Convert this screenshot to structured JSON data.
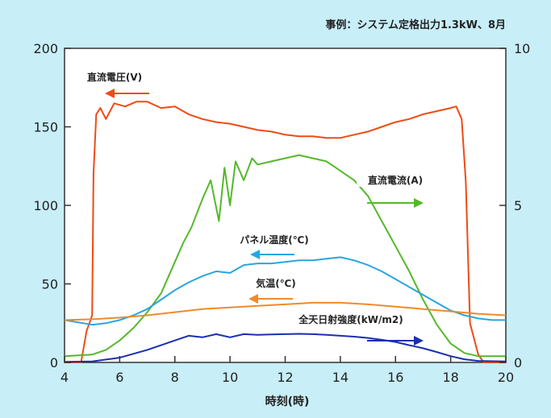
{
  "colors": {
    "background": "#c8eef8",
    "plot_background": "#ffffff",
    "voltage": "#ef4b14",
    "current": "#55b82a",
    "panel_temp": "#2aa4e2",
    "air_temp": "#f08a2a",
    "irradiance": "#1a2fb0",
    "axis": "#333333"
  },
  "chart_data": {
    "type": "line",
    "title": "",
    "annotation": "事例：システム定格出力1.3kW、8月",
    "xlabel": "時刻(時)",
    "ylabel": "",
    "xlim": [
      4,
      20
    ],
    "ylim_left": [
      0,
      200
    ],
    "ylim_right": [
      0,
      10
    ],
    "x_ticks": [
      "4",
      "6",
      "8",
      "10",
      "12",
      "14",
      "16",
      "18",
      "20"
    ],
    "y_ticks_left": [
      "0",
      "50",
      "100",
      "150",
      "200"
    ],
    "y_ticks_right": [
      "0",
      "5",
      "10"
    ],
    "grid": false,
    "series": [
      {
        "name": "直流電圧(V)",
        "axis": "left",
        "color_key": "voltage",
        "label_direction": "left",
        "x": [
          4.0,
          4.6,
          4.8,
          4.9,
          5.0,
          5.05,
          5.15,
          5.3,
          5.5,
          5.8,
          6.2,
          6.6,
          7.0,
          7.5,
          8.0,
          8.5,
          9.0,
          9.5,
          10.0,
          10.5,
          11.0,
          11.5,
          12.0,
          12.5,
          13.0,
          13.5,
          14.0,
          14.5,
          15.0,
          15.5,
          16.0,
          16.5,
          17.0,
          17.5,
          18.0,
          18.2,
          18.4,
          18.55,
          18.7,
          18.85,
          19.0,
          19.2,
          20.0
        ],
        "y": [
          0,
          0,
          20,
          25,
          30,
          120,
          158,
          162,
          155,
          165,
          163,
          166,
          166,
          162,
          163,
          158,
          155,
          153,
          152,
          150,
          148,
          147,
          145,
          144,
          144,
          143,
          143,
          145,
          147,
          150,
          153,
          155,
          158,
          160,
          162,
          163,
          155,
          115,
          25,
          15,
          5,
          0,
          0
        ]
      },
      {
        "name": "直流電流(A)",
        "axis": "right",
        "color_key": "current",
        "label_direction": "right",
        "x": [
          4.0,
          5.0,
          5.5,
          6.0,
          6.5,
          7.0,
          7.5,
          8.0,
          8.3,
          8.6,
          9.0,
          9.3,
          9.6,
          9.8,
          10.0,
          10.2,
          10.5,
          10.8,
          11.0,
          11.5,
          12.0,
          12.5,
          13.0,
          13.5,
          14.0,
          14.5,
          15.0,
          15.5,
          16.0,
          16.5,
          17.0,
          17.5,
          18.0,
          18.5,
          19.0,
          20.0
        ],
        "y": [
          0.2,
          0.25,
          0.4,
          0.7,
          1.1,
          1.6,
          2.2,
          3.2,
          3.8,
          4.3,
          5.2,
          5.8,
          4.5,
          6.2,
          5.0,
          6.4,
          5.8,
          6.5,
          6.3,
          6.4,
          6.5,
          6.6,
          6.5,
          6.4,
          6.1,
          5.8,
          5.3,
          4.5,
          3.7,
          2.9,
          2.0,
          1.2,
          0.6,
          0.3,
          0.2,
          0.2
        ]
      },
      {
        "name": "パネル温度(℃)",
        "axis": "left",
        "color_key": "panel_temp",
        "label_direction": "left",
        "x": [
          4.0,
          5.0,
          5.5,
          6.0,
          6.5,
          7.0,
          7.5,
          8.0,
          8.5,
          9.0,
          9.5,
          10.0,
          10.5,
          11.0,
          11.5,
          12.0,
          12.5,
          13.0,
          13.5,
          14.0,
          14.5,
          15.0,
          15.5,
          16.0,
          16.5,
          17.0,
          17.5,
          18.0,
          18.5,
          19.0,
          19.5,
          20.0
        ],
        "y": [
          27,
          24,
          25,
          27,
          30,
          34,
          40,
          46,
          51,
          55,
          58,
          57,
          62,
          63,
          63,
          64,
          65,
          65,
          66,
          67,
          65,
          62,
          58,
          53,
          48,
          43,
          38,
          33,
          30,
          28,
          27,
          27
        ]
      },
      {
        "name": "気温(℃)",
        "axis": "left",
        "color_key": "air_temp",
        "label_direction": "left",
        "x": [
          4.0,
          5.0,
          6.0,
          7.0,
          8.0,
          9.0,
          10.0,
          11.0,
          12.0,
          13.0,
          14.0,
          15.0,
          16.0,
          17.0,
          18.0,
          19.0,
          20.0
        ],
        "y": [
          27,
          27.5,
          28.5,
          30,
          32,
          34,
          35,
          36,
          37,
          38,
          38,
          37,
          35.5,
          34,
          32.5,
          31,
          30
        ]
      },
      {
        "name": "全天日射強度(kW/m2)",
        "axis": "right",
        "color_key": "irradiance",
        "label_direction": "right",
        "x": [
          4.0,
          5.0,
          6.0,
          7.0,
          8.0,
          8.5,
          9.0,
          9.5,
          10.0,
          10.5,
          11.0,
          11.5,
          12.0,
          12.5,
          13.0,
          13.5,
          14.0,
          14.5,
          15.0,
          15.5,
          16.0,
          16.5,
          17.0,
          17.5,
          18.0,
          18.5,
          19.0,
          20.0
        ],
        "y": [
          0.02,
          0.03,
          0.15,
          0.4,
          0.7,
          0.85,
          0.8,
          0.9,
          0.8,
          0.9,
          0.88,
          0.89,
          0.9,
          0.91,
          0.9,
          0.88,
          0.85,
          0.82,
          0.78,
          0.72,
          0.65,
          0.55,
          0.45,
          0.33,
          0.2,
          0.1,
          0.05,
          0.03
        ]
      }
    ]
  }
}
